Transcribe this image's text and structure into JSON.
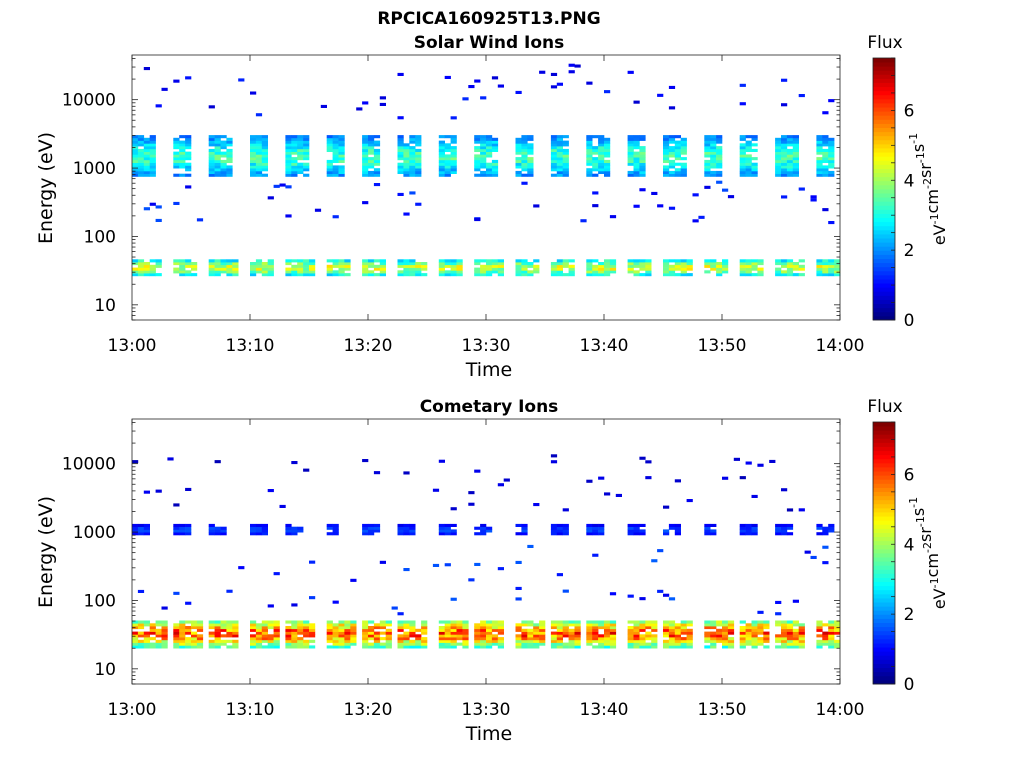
{
  "figure": {
    "title": "RPCICA160925T13.PNG"
  },
  "chart_data": [
    {
      "type": "heatmap",
      "title": "Solar Wind Ions",
      "xlabel": "Time",
      "ylabel": "Energy (eV)",
      "x_ticks": [
        "13:00",
        "13:10",
        "13:20",
        "13:30",
        "13:40",
        "13:50",
        "14:00"
      ],
      "x_range_minutes": [
        0,
        60
      ],
      "y_scale": "log",
      "y_ticks": [
        10,
        100,
        1000,
        10000
      ],
      "y_tick_labels": [
        "10",
        "100",
        "1000",
        "10000"
      ],
      "ylim": [
        6,
        45000
      ],
      "colorbar": {
        "label_top": "Flux",
        "label": "eV-1cm-2sr-1s-1",
        "range": [
          0,
          7.5
        ],
        "ticks": [
          0,
          2,
          4,
          6
        ],
        "colormap": "jet"
      },
      "data": [
        {
          "name": "solar_wind_main",
          "t_start": 0,
          "t_end": 60,
          "period": 3.2,
          "duty": 0.55,
          "e_low": 700,
          "e_high": 2800,
          "v_max": 3.5
        },
        {
          "name": "solar_wind_low",
          "t_start": 0,
          "t_end": 60,
          "period": 3.2,
          "duty": 0.7,
          "e_low": 25,
          "e_high": 45,
          "v_max": 4.6
        },
        {
          "name": "sparse_high",
          "t_start": 0,
          "t_end": 60,
          "e_low": 5000,
          "e_high": 32000,
          "v_max": 1.2
        },
        {
          "name": "sparse_mid",
          "t_start": 0,
          "t_end": 60,
          "e_low": 150,
          "e_high": 600,
          "v_max": 1.4
        }
      ]
    },
    {
      "type": "heatmap",
      "title": "Cometary Ions",
      "xlabel": "Time",
      "ylabel": "Energy (eV)",
      "x_ticks": [
        "13:00",
        "13:10",
        "13:20",
        "13:30",
        "13:40",
        "13:50",
        "14:00"
      ],
      "x_range_minutes": [
        0,
        60
      ],
      "y_scale": "log",
      "y_ticks": [
        10,
        100,
        1000,
        10000
      ],
      "y_tick_labels": [
        "10",
        "100",
        "1000",
        "10000"
      ],
      "ylim": [
        6,
        45000
      ],
      "colorbar": {
        "label_top": "Flux",
        "label": "eV-1cm-2sr-1s-1",
        "range": [
          0,
          7.5
        ],
        "ticks": [
          0,
          2,
          4,
          6
        ],
        "colormap": "jet"
      },
      "data": [
        {
          "name": "cometary_main",
          "t_start": 0,
          "t_end": 60,
          "period": 3.2,
          "duty": 0.8,
          "e_low": 20,
          "e_high": 50,
          "v_max": 6.3
        },
        {
          "name": "cometary_1000",
          "t_start": 0,
          "t_end": 60,
          "period": 3.2,
          "duty": 0.45,
          "e_low": 850,
          "e_high": 1250,
          "v_max": 1.5
        },
        {
          "name": "sparse_mid",
          "t_start": 0,
          "t_end": 60,
          "e_low": 60,
          "e_high": 600,
          "v_max": 1.5
        },
        {
          "name": "sparse_high",
          "t_start": 0,
          "t_end": 60,
          "e_low": 2000,
          "e_high": 13000,
          "v_max": 0.8
        }
      ]
    }
  ]
}
